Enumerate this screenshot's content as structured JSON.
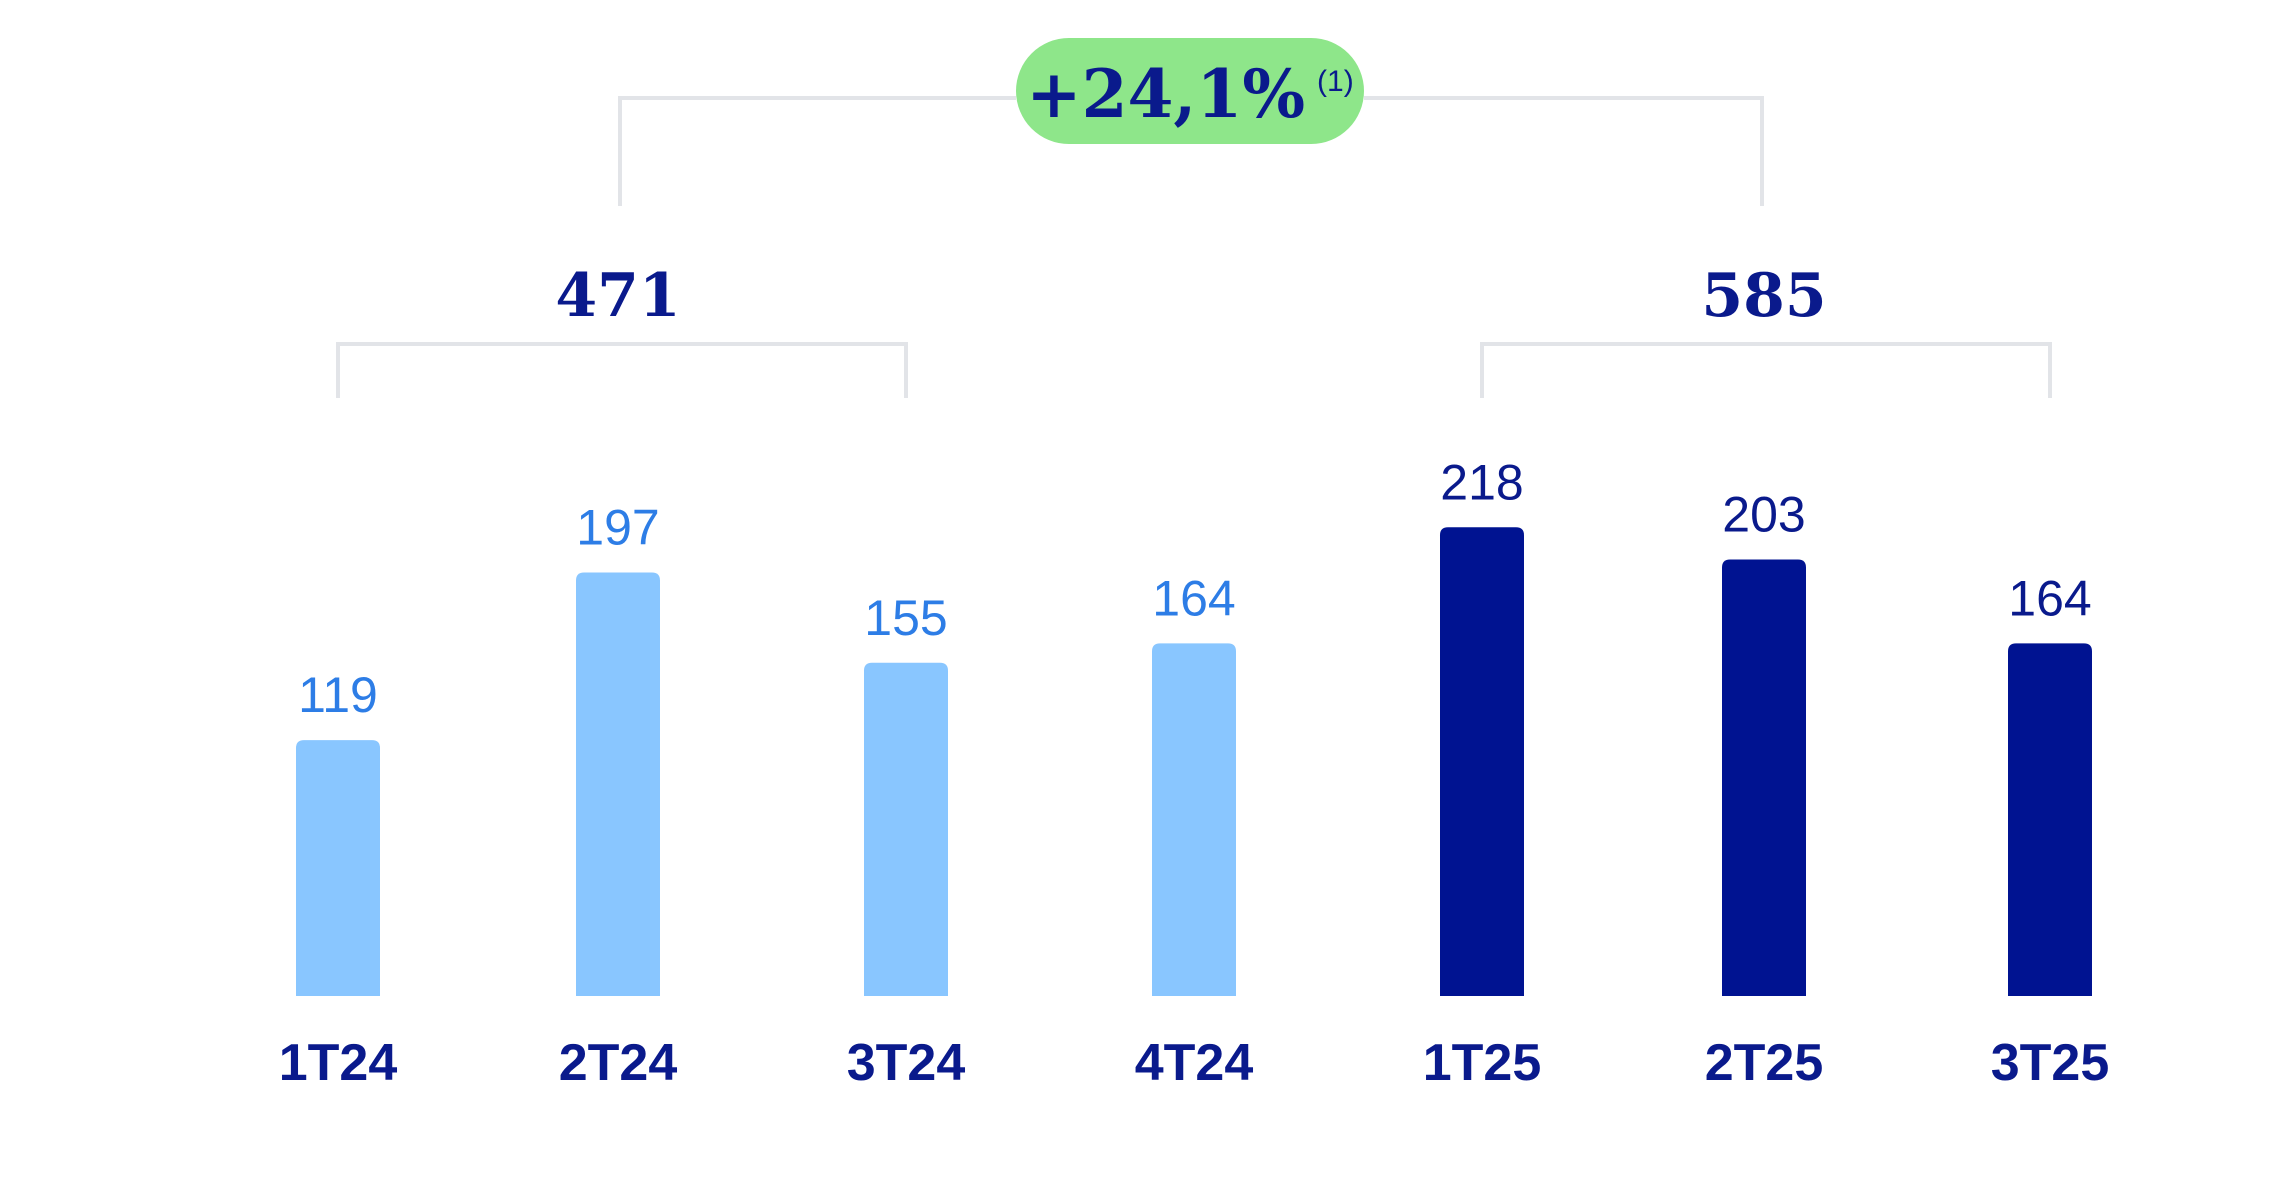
{
  "chart_data": {
    "type": "bar",
    "categories": [
      "1T24",
      "2T24",
      "3T24",
      "4T24",
      "1T25",
      "2T25",
      "3T25"
    ],
    "values": [
      119,
      197,
      155,
      164,
      218,
      203,
      164
    ],
    "ylim": [
      0,
      245
    ],
    "grid": false,
    "groups": [
      {
        "total": "471",
        "members": [
          "1T24",
          "2T24",
          "3T24"
        ]
      },
      {
        "total": "585",
        "members": [
          "1T25",
          "2T25",
          "3T25"
        ]
      }
    ],
    "comparison": {
      "label": "+24,1%",
      "note": "(1)"
    }
  },
  "colors": {
    "bar_2024": "#89C6FF",
    "bar_2025": "#001391",
    "value_2024": "#2D7DE6",
    "value_2025": "#0A1A8C",
    "category": "#0A1A8C",
    "total": "#0A1A8C",
    "bracket": "#E2E4E8",
    "badge_fill": "#8EE68A",
    "badge_text": "#0A1A8C"
  }
}
